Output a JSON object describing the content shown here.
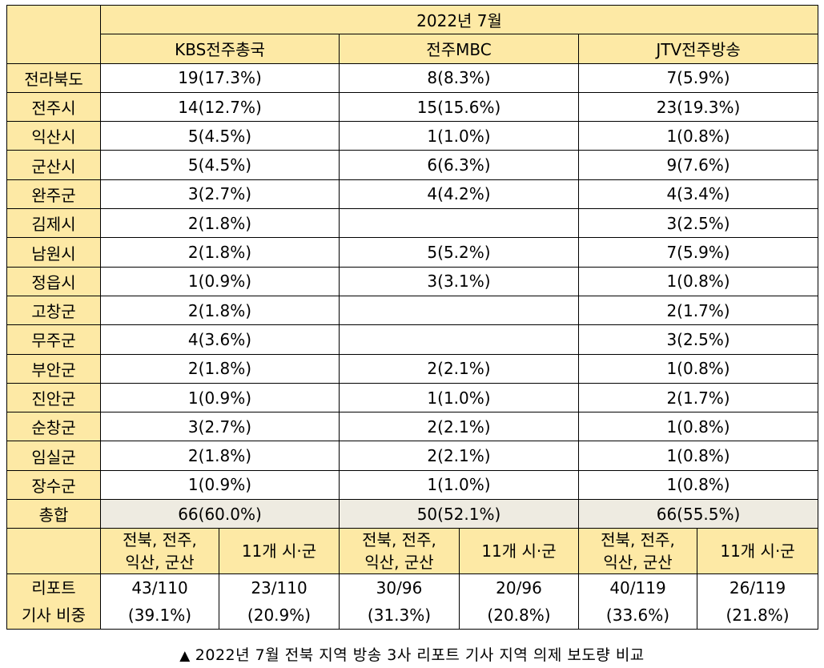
{
  "header": {
    "period": "2022년 7월",
    "stations": [
      "KBS전주총국",
      "전주MBC",
      "JTV전주방송"
    ]
  },
  "rows": [
    {
      "region": "전라북도",
      "values": [
        "19(17.3%)",
        "8(8.3%)",
        "7(5.9%)"
      ]
    },
    {
      "region": "전주시",
      "values": [
        "14(12.7%)",
        "15(15.6%)",
        "23(19.3%)"
      ]
    },
    {
      "region": "익산시",
      "values": [
        "5(4.5%)",
        "1(1.0%)",
        "1(0.8%)"
      ]
    },
    {
      "region": "군산시",
      "values": [
        "5(4.5%)",
        "6(6.3%)",
        "9(7.6%)"
      ]
    },
    {
      "region": "완주군",
      "values": [
        "3(2.7%)",
        "4(4.2%)",
        "4(3.4%)"
      ]
    },
    {
      "region": "김제시",
      "values": [
        "2(1.8%)",
        "",
        "3(2.5%)"
      ]
    },
    {
      "region": "남원시",
      "values": [
        "2(1.8%)",
        "5(5.2%)",
        "7(5.9%)"
      ]
    },
    {
      "region": "정읍시",
      "values": [
        "1(0.9%)",
        "3(3.1%)",
        "1(0.8%)"
      ]
    },
    {
      "region": "고창군",
      "values": [
        "2(1.8%)",
        "",
        "2(1.7%)"
      ]
    },
    {
      "region": "무주군",
      "values": [
        "4(3.6%)",
        "",
        "3(2.5%)"
      ]
    },
    {
      "region": "부안군",
      "values": [
        "2(1.8%)",
        "2(2.1%)",
        "1(0.8%)"
      ]
    },
    {
      "region": "진안군",
      "values": [
        "1(0.9%)",
        "1(1.0%)",
        "2(1.7%)"
      ]
    },
    {
      "region": "순창군",
      "values": [
        "3(2.7%)",
        "2(2.1%)",
        "1(0.8%)"
      ]
    },
    {
      "region": "임실군",
      "values": [
        "2(1.8%)",
        "2(2.1%)",
        "1(0.8%)"
      ]
    },
    {
      "region": "장수군",
      "values": [
        "1(0.9%)",
        "1(1.0%)",
        "1(0.8%)"
      ]
    }
  ],
  "total": {
    "label": "총합",
    "values": [
      "66(60.0%)",
      "50(52.1%)",
      "66(55.5%)"
    ]
  },
  "subheader": {
    "group_a_line1": "전북, 전주,",
    "group_a_line2": "익산, 군산",
    "group_b": "11개 시·군"
  },
  "report": {
    "label_line1": "리포트",
    "label_line2": "기사 비중",
    "cells": [
      {
        "count": "43/110",
        "pct": "(39.1%)"
      },
      {
        "count": "23/110",
        "pct": "(20.9%)"
      },
      {
        "count": "30/96",
        "pct": "(31.3%)"
      },
      {
        "count": "20/96",
        "pct": "(20.8%)"
      },
      {
        "count": "40/119",
        "pct": "(33.6%)"
      },
      {
        "count": "26/119",
        "pct": "(21.8%)"
      }
    ]
  },
  "caption": {
    "marker": "▲",
    "text": "2022년 7월 전북 지역 방송 3사 리포트 기사 지역 의제 보도량 비교"
  }
}
